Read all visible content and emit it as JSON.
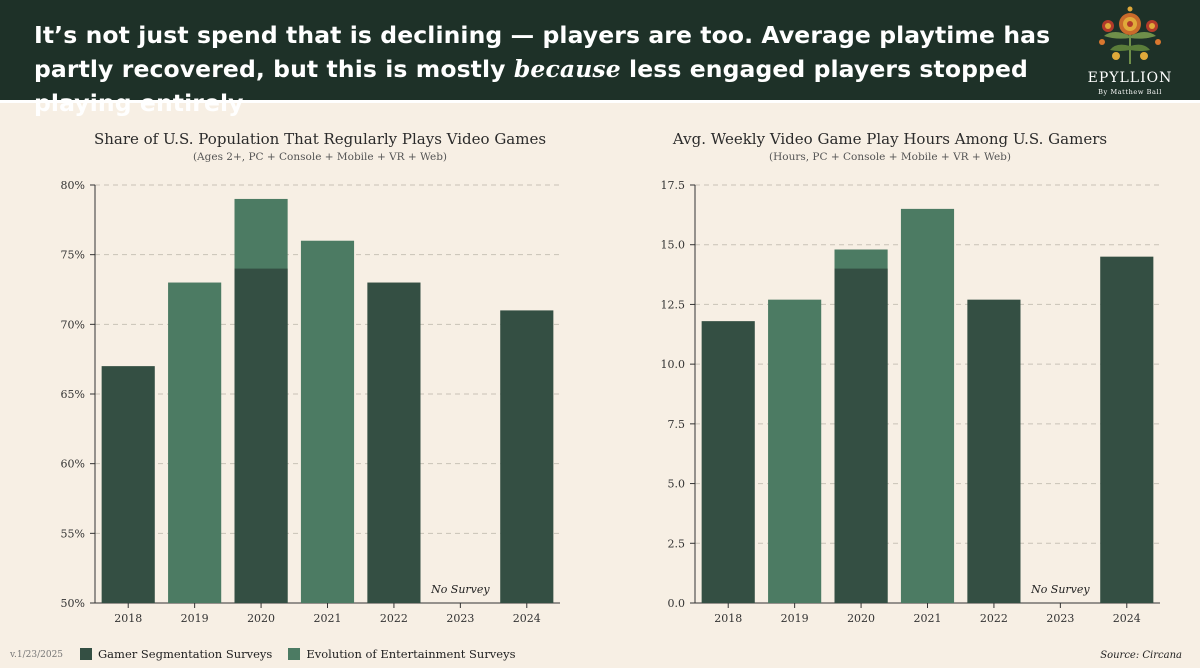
{
  "header": {
    "headline_part1": "It’s not just spend that is declining — players are too. Average playtime has partly recovered, but this is mostly ",
    "headline_emphasis": "because",
    "headline_part2": " less engaged players stopped playing entirely"
  },
  "logo": {
    "name": "EPYLLION",
    "byline": "By Matthew Ball"
  },
  "colors": {
    "gamer_segmentation": "#344f43",
    "evolution_entertainment": "#4c7b63",
    "header_bg": "#1e3128"
  },
  "legend": {
    "items": [
      {
        "label": "Gamer Segmentation Surveys",
        "color": "#344f43"
      },
      {
        "label": "Evolution of Entertainment Surveys",
        "color": "#4c7b63"
      }
    ]
  },
  "footer": {
    "version": "v.1/23/2025",
    "source": "Source: Circana"
  },
  "chart_data": [
    {
      "type": "bar",
      "title": "Share of U.S. Population That Regularly Plays Video Games",
      "subtitle": "(Ages 2+, PC + Console + Mobile + VR + Web)",
      "categories": [
        "2018",
        "2019",
        "2020",
        "2021",
        "2022",
        "2023",
        "2024"
      ],
      "series": [
        {
          "name": "Gamer Segmentation Surveys",
          "values": [
            67,
            null,
            74,
            null,
            73,
            null,
            71
          ]
        },
        {
          "name": "Evolution of Entertainment Surveys",
          "values": [
            null,
            73,
            79,
            76,
            null,
            null,
            null
          ]
        }
      ],
      "ylim": [
        50,
        80
      ],
      "yticks": [
        "50%",
        "55%",
        "60%",
        "65%",
        "70%",
        "75%",
        "80%"
      ],
      "annotations": [
        {
          "category": "2023",
          "text": "No Survey"
        }
      ],
      "grid": true
    },
    {
      "type": "bar",
      "title": "Avg. Weekly Video Game Play Hours Among U.S. Gamers",
      "subtitle": "(Hours, PC + Console + Mobile + VR + Web)",
      "categories": [
        "2018",
        "2019",
        "2020",
        "2021",
        "2022",
        "2023",
        "2024"
      ],
      "series": [
        {
          "name": "Gamer Segmentation Surveys",
          "values": [
            11.8,
            null,
            14.0,
            null,
            12.7,
            null,
            14.5
          ]
        },
        {
          "name": "Evolution of Entertainment Surveys",
          "values": [
            null,
            12.7,
            14.8,
            16.5,
            null,
            null,
            null
          ]
        }
      ],
      "ylim": [
        0,
        17.5
      ],
      "yticks": [
        "0.0",
        "2.5",
        "5.0",
        "7.5",
        "10.0",
        "12.5",
        "15.0",
        "17.5"
      ],
      "annotations": [
        {
          "category": "2023",
          "text": "No Survey"
        }
      ],
      "grid": true
    }
  ]
}
